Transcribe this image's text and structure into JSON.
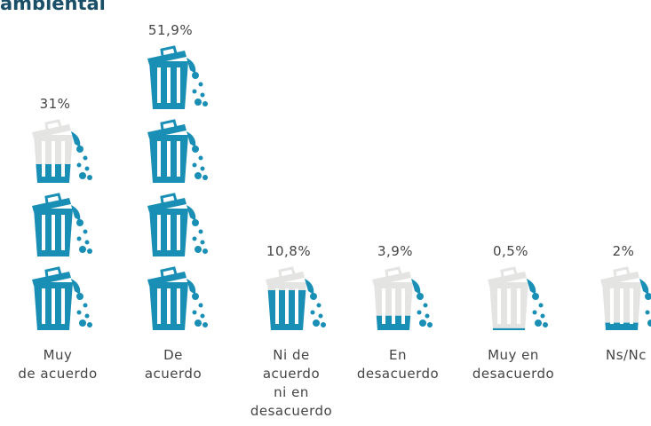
{
  "chart_data": {
    "type": "pictogram",
    "title": "ambiental",
    "categories": [
      "Muy\nde acuerdo",
      "De\nacuerdo",
      "Ni de\nacuerdo\nni en\ndesacuerdo",
      "En\ndesacuerdo",
      "Muy en\ndesacuerdo",
      "Ns/Nc"
    ],
    "values": [
      31,
      51.9,
      10.8,
      3.9,
      0.5,
      2
    ],
    "value_labels": [
      "31%",
      "51,9%",
      "10,8%",
      "3,9%",
      "0,5%",
      "2%"
    ],
    "color": "#1a8fb5",
    "background_color": "#e4e4e2"
  }
}
